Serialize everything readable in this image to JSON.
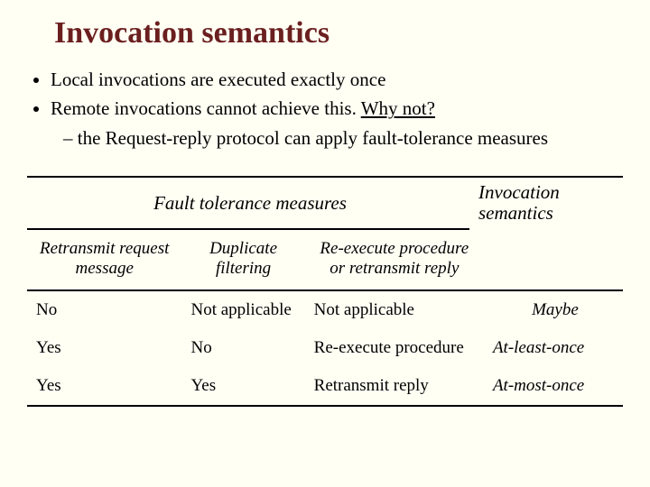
{
  "title": "Invocation semantics",
  "bullets": {
    "b1": "Local invocations are executed exactly once",
    "b2_pre": "Remote invocations cannot achieve this. ",
    "b2_link": "Why not?",
    "sub1": "the  Request-reply protocol can apply fault-tolerance measures"
  },
  "hdr": {
    "left": "Fault tolerance measures",
    "right1": "Invocation",
    "right2": "semantics"
  },
  "cols": {
    "c1a": "Retransmit request",
    "c1b": "message",
    "c2a": "Duplicate",
    "c2b": "filtering",
    "c3a": "Re-execute procedure",
    "c3b": "or retransmit reply"
  },
  "rows": [
    {
      "r": "No",
      "d": "Not applicable",
      "e": "Not applicable",
      "s": "Maybe"
    },
    {
      "r": "Yes",
      "d": "No",
      "e": "Re-execute procedure",
      "s": "At-least-once"
    },
    {
      "r": "Yes",
      "d": "Yes",
      "e": "Retransmit reply",
      "s": "At-most-once"
    }
  ],
  "colors": {
    "background": "#fffff4",
    "title": "#6b1f1f",
    "rule": "#000000"
  },
  "fonts": {
    "family": "Times New Roman",
    "title_size_pt": 26,
    "body_size_pt": 16
  }
}
